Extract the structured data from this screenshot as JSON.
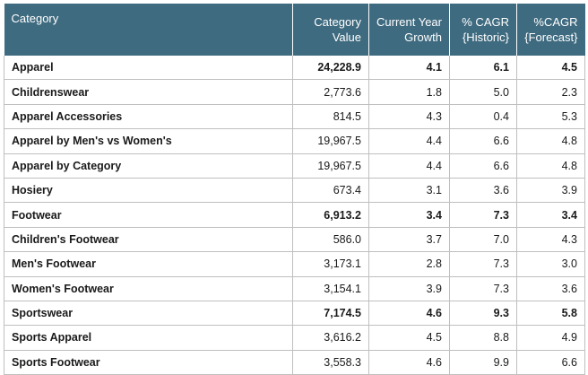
{
  "chart_data": {
    "type": "table",
    "columns": [
      [
        "Category"
      ],
      [
        "Category",
        "Value"
      ],
      [
        "Current Year",
        "Growth"
      ],
      [
        "% CAGR",
        "{Historic}"
      ],
      [
        "%CAGR",
        "{Forecast}"
      ]
    ],
    "rows": [
      {
        "category": "Apparel",
        "value": "24,228.9",
        "growth": "4.1",
        "hist": "6.1",
        "fore": "4.5",
        "bold": true
      },
      {
        "category": "Childrenswear",
        "value": "2,773.6",
        "growth": "1.8",
        "hist": "5.0",
        "fore": "2.3",
        "bold": false
      },
      {
        "category": "Apparel Accessories",
        "value": "814.5",
        "growth": "4.3",
        "hist": "0.4",
        "fore": "5.3",
        "bold": false
      },
      {
        "category": "Apparel by Men's vs Women's",
        "value": "19,967.5",
        "growth": "4.4",
        "hist": "6.6",
        "fore": "4.8",
        "bold": false
      },
      {
        "category": "Apparel by Category",
        "value": "19,967.5",
        "growth": "4.4",
        "hist": "6.6",
        "fore": "4.8",
        "bold": false
      },
      {
        "category": "Hosiery",
        "value": "673.4",
        "growth": "3.1",
        "hist": "3.6",
        "fore": "3.9",
        "bold": false
      },
      {
        "category": "Footwear",
        "value": "6,913.2",
        "growth": "3.4",
        "hist": "7.3",
        "fore": "3.4",
        "bold": true
      },
      {
        "category": "Children's Footwear",
        "value": "586.0",
        "growth": "3.7",
        "hist": "7.0",
        "fore": "4.3",
        "bold": false
      },
      {
        "category": "Men's Footwear",
        "value": "3,173.1",
        "growth": "2.8",
        "hist": "7.3",
        "fore": "3.0",
        "bold": false
      },
      {
        "category": "Women's Footwear",
        "value": "3,154.1",
        "growth": "3.9",
        "hist": "7.3",
        "fore": "3.6",
        "bold": false
      },
      {
        "category": "Sportswear",
        "value": "7,174.5",
        "growth": "4.6",
        "hist": "9.3",
        "fore": "5.8",
        "bold": true
      },
      {
        "category": "Sports Apparel",
        "value": "3,616.2",
        "growth": "4.5",
        "hist": "8.8",
        "fore": "4.9",
        "bold": false
      },
      {
        "category": "Sports Footwear",
        "value": "3,558.3",
        "growth": "4.6",
        "hist": "9.9",
        "fore": "6.6",
        "bold": false
      }
    ]
  },
  "colors": {
    "header_bg": "#3f6b80",
    "header_text": "#ffffff",
    "grid": "#bfbfbf"
  }
}
